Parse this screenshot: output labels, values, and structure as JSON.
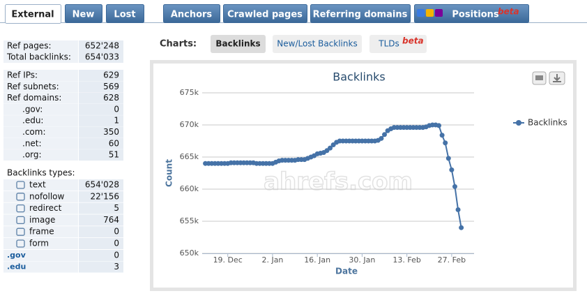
{
  "tabs": [
    {
      "label": "External"
    },
    {
      "label": "New"
    },
    {
      "label": "Lost"
    },
    {
      "label": "Anchors"
    },
    {
      "label": "Crawled pages"
    },
    {
      "label": "Referring domains"
    },
    {
      "label": "Positions",
      "badge": "beta"
    }
  ],
  "charts_nav": {
    "label": "Charts:",
    "buttons": [
      {
        "label": "Backlinks"
      },
      {
        "label": "New/Lost Backlinks"
      },
      {
        "label": "TLDs",
        "badge": "beta"
      }
    ]
  },
  "stats": {
    "summary": [
      {
        "label": "Ref pages:",
        "value": "652'248"
      },
      {
        "label": "Total backlinks:",
        "value": "654'033"
      }
    ],
    "refs": [
      {
        "label": "Ref IPs:",
        "value": "629"
      },
      {
        "label": "Ref subnets:",
        "value": "569"
      },
      {
        "label": "Ref domains:",
        "value": "628"
      },
      {
        "label": ".gov:",
        "value": "0"
      },
      {
        "label": ".edu:",
        "value": "1"
      },
      {
        "label": ".com:",
        "value": "350"
      },
      {
        "label": ".net:",
        "value": "60"
      },
      {
        "label": ".org:",
        "value": "51"
      }
    ],
    "types_title": "Backlinks types:",
    "types": [
      {
        "label": "text",
        "value": "654'028"
      },
      {
        "label": "nofollow",
        "value": "22'156"
      },
      {
        "label": "redirect",
        "value": "5"
      },
      {
        "label": "image",
        "value": "764"
      },
      {
        "label": "frame",
        "value": "0"
      },
      {
        "label": "form",
        "value": "0"
      }
    ],
    "tlds": [
      {
        "label": ".gov",
        "value": "0"
      },
      {
        "label": ".edu",
        "value": "3"
      }
    ]
  },
  "watermark": "ahrefs.com",
  "chart_data": {
    "type": "line",
    "title": "Backlinks",
    "x_label": "Date",
    "y_label": "Count",
    "x": [
      0,
      1,
      2,
      3,
      4,
      5,
      6,
      7,
      8,
      9,
      10,
      11,
      12,
      13,
      14,
      15,
      16,
      17,
      18,
      19,
      20,
      21,
      22,
      23,
      24,
      25,
      26,
      27,
      28,
      29,
      30,
      31,
      32,
      33,
      34,
      35,
      36,
      37,
      38,
      39,
      40,
      41,
      42,
      43,
      44,
      45,
      46,
      47,
      48,
      49,
      50,
      51,
      52,
      53,
      54,
      55,
      56,
      57,
      58,
      59,
      60,
      61,
      62,
      63,
      64,
      65,
      66,
      67,
      68,
      69,
      70,
      71,
      72,
      73,
      74,
      75,
      76,
      77,
      78,
      79,
      80
    ],
    "series": [
      {
        "name": "Backlinks",
        "color": "#4572a7",
        "values": [
          664000,
          664000,
          664000,
          664000,
          664000,
          664000,
          664000,
          664000,
          664100,
          664100,
          664100,
          664100,
          664100,
          664100,
          664100,
          664100,
          664000,
          664000,
          664000,
          664000,
          664000,
          664000,
          664200,
          664400,
          664500,
          664500,
          664500,
          664500,
          664500,
          664600,
          664600,
          664600,
          664800,
          665000,
          665200,
          665500,
          665600,
          665700,
          666000,
          666400,
          666900,
          667300,
          667500,
          667500,
          667500,
          667500,
          667500,
          667500,
          667500,
          667500,
          667500,
          667500,
          667500,
          667500,
          667600,
          667900,
          668500,
          669100,
          669400,
          669600,
          669600,
          669600,
          669600,
          669600,
          669600,
          669600,
          669600,
          669600,
          669600,
          669700,
          669900,
          670000,
          670000,
          669900,
          668400,
          667200,
          664800,
          663000,
          660400,
          656800,
          654000
        ]
      }
    ],
    "xlim": [
      -1,
      84
    ],
    "xticks": [
      {
        "value": 7,
        "label": "19. Dec"
      },
      {
        "value": 21,
        "label": "2. Jan"
      },
      {
        "value": 35,
        "label": "16. Jan"
      },
      {
        "value": 49,
        "label": "30. Jan"
      },
      {
        "value": 63,
        "label": "13. Feb"
      },
      {
        "value": 77,
        "label": "27. Feb"
      }
    ],
    "ylim": [
      650000,
      675000
    ],
    "yticks": [
      {
        "value": 650000,
        "label": "650k"
      },
      {
        "value": 655000,
        "label": "655k"
      },
      {
        "value": 660000,
        "label": "660k"
      },
      {
        "value": 665000,
        "label": "665k"
      },
      {
        "value": 670000,
        "label": "670k"
      },
      {
        "value": 675000,
        "label": "675k"
      }
    ],
    "grid": true,
    "legend": "right"
  }
}
